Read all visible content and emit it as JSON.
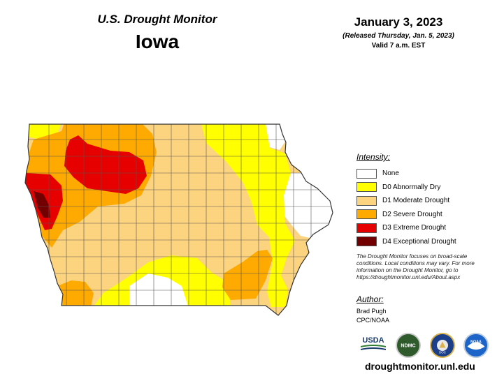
{
  "header": {
    "product": "U.S. Drought Monitor",
    "state": "Iowa",
    "date": "January 3, 2023",
    "released": "(Released Thursday, Jan. 5, 2023)",
    "valid": "Valid 7 a.m. EST"
  },
  "legend": {
    "title": "Intensity:",
    "items": [
      {
        "label": "None",
        "color": "#ffffff"
      },
      {
        "label": "D0 Abnormally Dry",
        "color": "#ffff00"
      },
      {
        "label": "D1 Moderate Drought",
        "color": "#fcd37f"
      },
      {
        "label": "D2 Severe Drought",
        "color": "#ffaa00"
      },
      {
        "label": "D3 Extreme Drought",
        "color": "#e60000"
      },
      {
        "label": "D4 Exceptional Drought",
        "color": "#730000"
      }
    ]
  },
  "note": "The Drought Monitor focuses on broad-scale conditions. Local conditions may vary. For more information on the Drought Monitor, go to https://droughtmonitor.unl.edu/About.aspx",
  "author": {
    "heading": "Author:",
    "name": "Brad Pugh",
    "org": "CPC/NOAA"
  },
  "logos": {
    "usda": "USDA",
    "ndmc": "NDMC",
    "doc": "DOC",
    "noaa": "NOAA"
  },
  "website": "droughtmonitor.unl.edu"
}
